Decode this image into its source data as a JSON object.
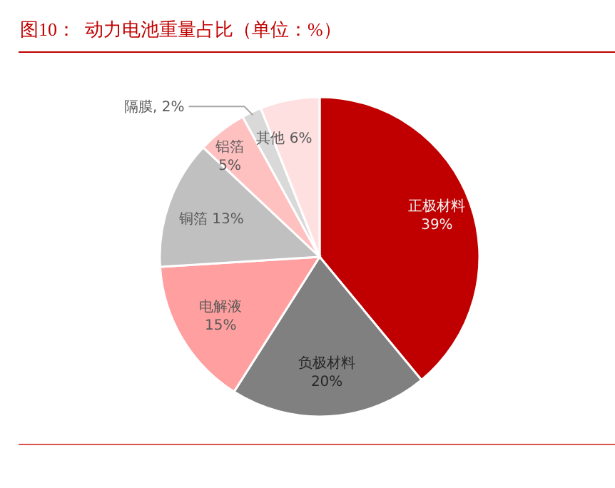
{
  "chart_data": {
    "type": "pie",
    "title": "图10：  动力电池重量占比（单位：%）",
    "categories": [
      "正极材料",
      "负极材料",
      "电解液",
      "铜箔",
      "铝箔",
      "隔膜",
      "其他"
    ],
    "values": [
      39,
      20,
      15,
      13,
      5,
      2,
      6
    ],
    "value_labels": [
      "39%",
      "20%",
      "15%",
      "13%",
      "5%",
      "2%",
      "6%"
    ],
    "colors": [
      "#c00000",
      "#808080",
      "#ff9f9f",
      "#c0c0c0",
      "#ffc0c0",
      "#d9d9d9",
      "#ffe0e0"
    ],
    "legend": false
  }
}
